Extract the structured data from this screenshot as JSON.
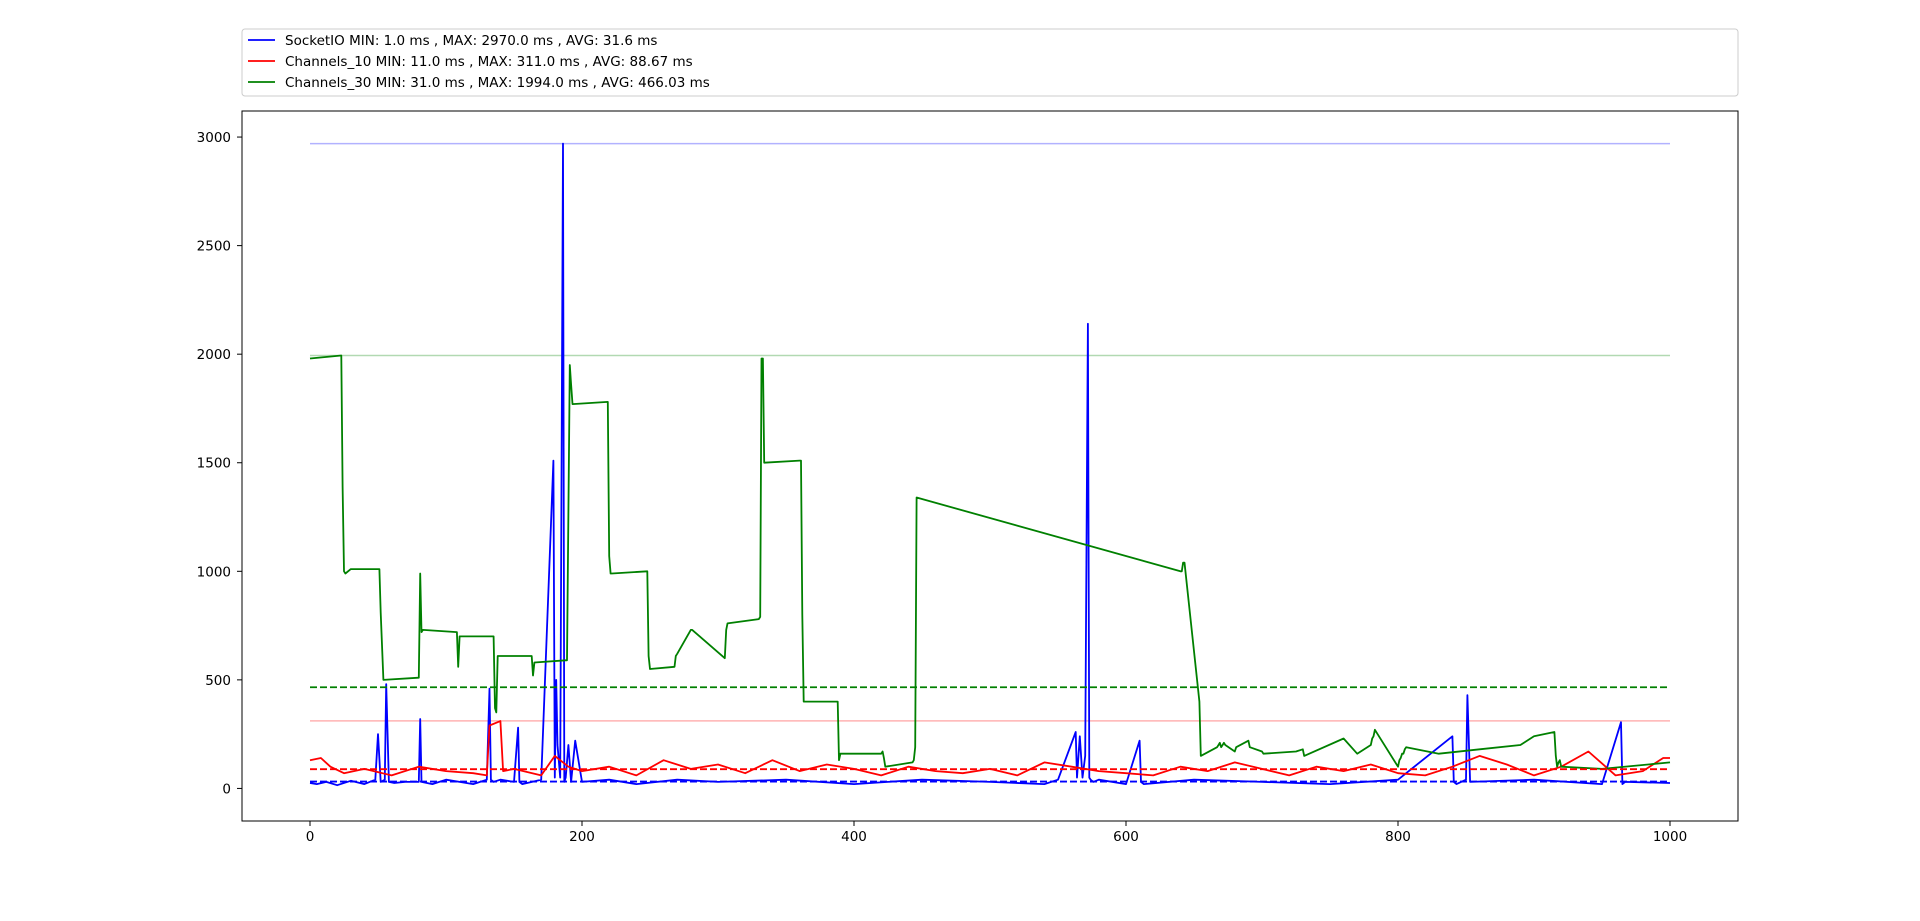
{
  "chart_data": {
    "type": "line",
    "title": "",
    "xlabel": "",
    "ylabel": "",
    "xlim": [
      -50,
      1050
    ],
    "ylim": [
      -150,
      3120
    ],
    "xticks": [
      0,
      200,
      400,
      600,
      800,
      1000
    ],
    "yticks": [
      0,
      500,
      1000,
      1500,
      2000,
      2500,
      3000
    ],
    "legend_position": "above-plot",
    "grid": false,
    "series": [
      {
        "name": "SocketIO",
        "legend_label": "SocketIO MIN: 1.0 ms   , MAX: 2970.0 ms   , AVG: 31.6 ms",
        "color": "#0000ff",
        "min": 1.0,
        "max": 2970.0,
        "avg": 31.6,
        "x": [
          0,
          5,
          12,
          20,
          30,
          40,
          48,
          50,
          52,
          55,
          56,
          58,
          62,
          70,
          80,
          81,
          82,
          90,
          100,
          110,
          120,
          130,
          132,
          133,
          135,
          140,
          150,
          153,
          154,
          156,
          170,
          179,
          180,
          181,
          182,
          184,
          186,
          187,
          188,
          190,
          192,
          195,
          200,
          220,
          240,
          270,
          300,
          350,
          400,
          450,
          500,
          540,
          550,
          563,
          564,
          566,
          568,
          570,
          572,
          573,
          574,
          576,
          580,
          600,
          610,
          611,
          613,
          650,
          700,
          750,
          800,
          840,
          841,
          843,
          850,
          851,
          853,
          900,
          950,
          964,
          965,
          967,
          1000
        ],
        "y": [
          25,
          20,
          30,
          15,
          35,
          20,
          40,
          250,
          30,
          40,
          480,
          30,
          25,
          30,
          30,
          320,
          30,
          20,
          40,
          30,
          20,
          40,
          460,
          40,
          30,
          40,
          30,
          280,
          30,
          20,
          40,
          1510,
          50,
          500,
          200,
          50,
          2970,
          30,
          50,
          200,
          30,
          220,
          30,
          40,
          20,
          40,
          30,
          40,
          20,
          40,
          30,
          20,
          40,
          260,
          50,
          240,
          50,
          150,
          2140,
          50,
          40,
          30,
          40,
          20,
          220,
          30,
          20,
          40,
          30,
          20,
          40,
          240,
          30,
          20,
          40,
          430,
          30,
          40,
          20,
          305,
          20,
          30,
          25
        ]
      },
      {
        "name": "Channels_10",
        "legend_label": "Channels_10 MIN: 11.0 ms   , MAX: 311.0 ms   , AVG: 88.67 ms",
        "color": "#ff0000",
        "min": 11.0,
        "max": 311.0,
        "avg": 88.67,
        "x": [
          0,
          8,
          15,
          25,
          40,
          60,
          80,
          100,
          120,
          130,
          132,
          140,
          142,
          150,
          170,
          180,
          190,
          200,
          220,
          240,
          260,
          280,
          300,
          320,
          340,
          360,
          380,
          400,
          420,
          440,
          460,
          480,
          500,
          520,
          540,
          560,
          580,
          600,
          620,
          640,
          660,
          680,
          700,
          720,
          740,
          760,
          780,
          800,
          820,
          840,
          860,
          880,
          900,
          920,
          940,
          960,
          980,
          995,
          1000
        ],
        "y": [
          130,
          140,
          100,
          70,
          90,
          60,
          100,
          80,
          70,
          60,
          290,
          310,
          80,
          90,
          60,
          150,
          100,
          80,
          100,
          60,
          130,
          90,
          110,
          70,
          130,
          80,
          110,
          90,
          60,
          100,
          80,
          70,
          90,
          60,
          120,
          100,
          80,
          70,
          60,
          100,
          80,
          120,
          90,
          60,
          100,
          80,
          110,
          70,
          60,
          100,
          150,
          110,
          60,
          100,
          170,
          60,
          80,
          140,
          140
        ]
      },
      {
        "name": "Channels_30",
        "legend_label": "Channels_30 MIN: 31.0 ms   , MAX: 1994.0 ms   , AVG: 466.03 ms",
        "color": "#008000",
        "min": 31.0,
        "max": 1994.0,
        "avg": 466.03,
        "x": [
          0,
          23,
          24,
          25,
          26,
          30,
          51,
          52,
          54,
          80,
          81,
          82,
          83,
          108,
          109,
          110,
          135,
          136,
          137,
          138,
          163,
          164,
          165,
          188,
          189,
          191,
          192,
          193,
          219,
          220,
          221,
          222,
          248,
          249,
          250,
          268,
          269,
          270,
          280,
          281,
          305,
          306,
          307,
          330,
          331,
          332,
          333,
          334,
          360,
          361,
          362,
          363,
          364,
          388,
          389,
          390,
          420,
          421,
          422,
          423,
          443,
          444,
          445,
          446,
          640,
          641,
          642,
          643,
          654,
          655,
          667,
          668,
          669,
          670,
          671,
          672,
          673,
          680,
          681,
          690,
          691,
          700,
          701,
          725,
          730,
          731,
          760,
          770,
          780,
          781,
          782,
          783,
          800,
          801,
          802,
          803,
          804,
          805,
          806,
          830,
          860,
          890,
          900,
          915,
          916,
          917,
          918,
          919,
          920,
          950,
          1000
        ],
        "y": [
          1980,
          1994,
          1390,
          1000,
          990,
          1010,
          1010,
          810,
          500,
          510,
          990,
          720,
          730,
          720,
          560,
          700,
          700,
          370,
          350,
          610,
          610,
          520,
          580,
          590,
          590,
          1950,
          1860,
          1770,
          1780,
          1070,
          990,
          990,
          1000,
          610,
          550,
          560,
          610,
          620,
          730,
          730,
          600,
          730,
          760,
          780,
          790,
          1980,
          1980,
          1500,
          1510,
          1510,
          800,
          400,
          400,
          400,
          130,
          160,
          160,
          170,
          140,
          100,
          120,
          130,
          190,
          1340,
          1000,
          1000,
          1040,
          1040,
          400,
          150,
          190,
          200,
          210,
          190,
          200,
          210,
          200,
          170,
          190,
          220,
          190,
          170,
          160,
          170,
          180,
          150,
          230,
          160,
          200,
          230,
          240,
          270,
          100,
          130,
          140,
          160,
          160,
          180,
          190,
          160,
          180,
          200,
          240,
          260,
          150,
          100,
          120,
          130,
          100,
          90,
          120
        ]
      }
    ]
  }
}
